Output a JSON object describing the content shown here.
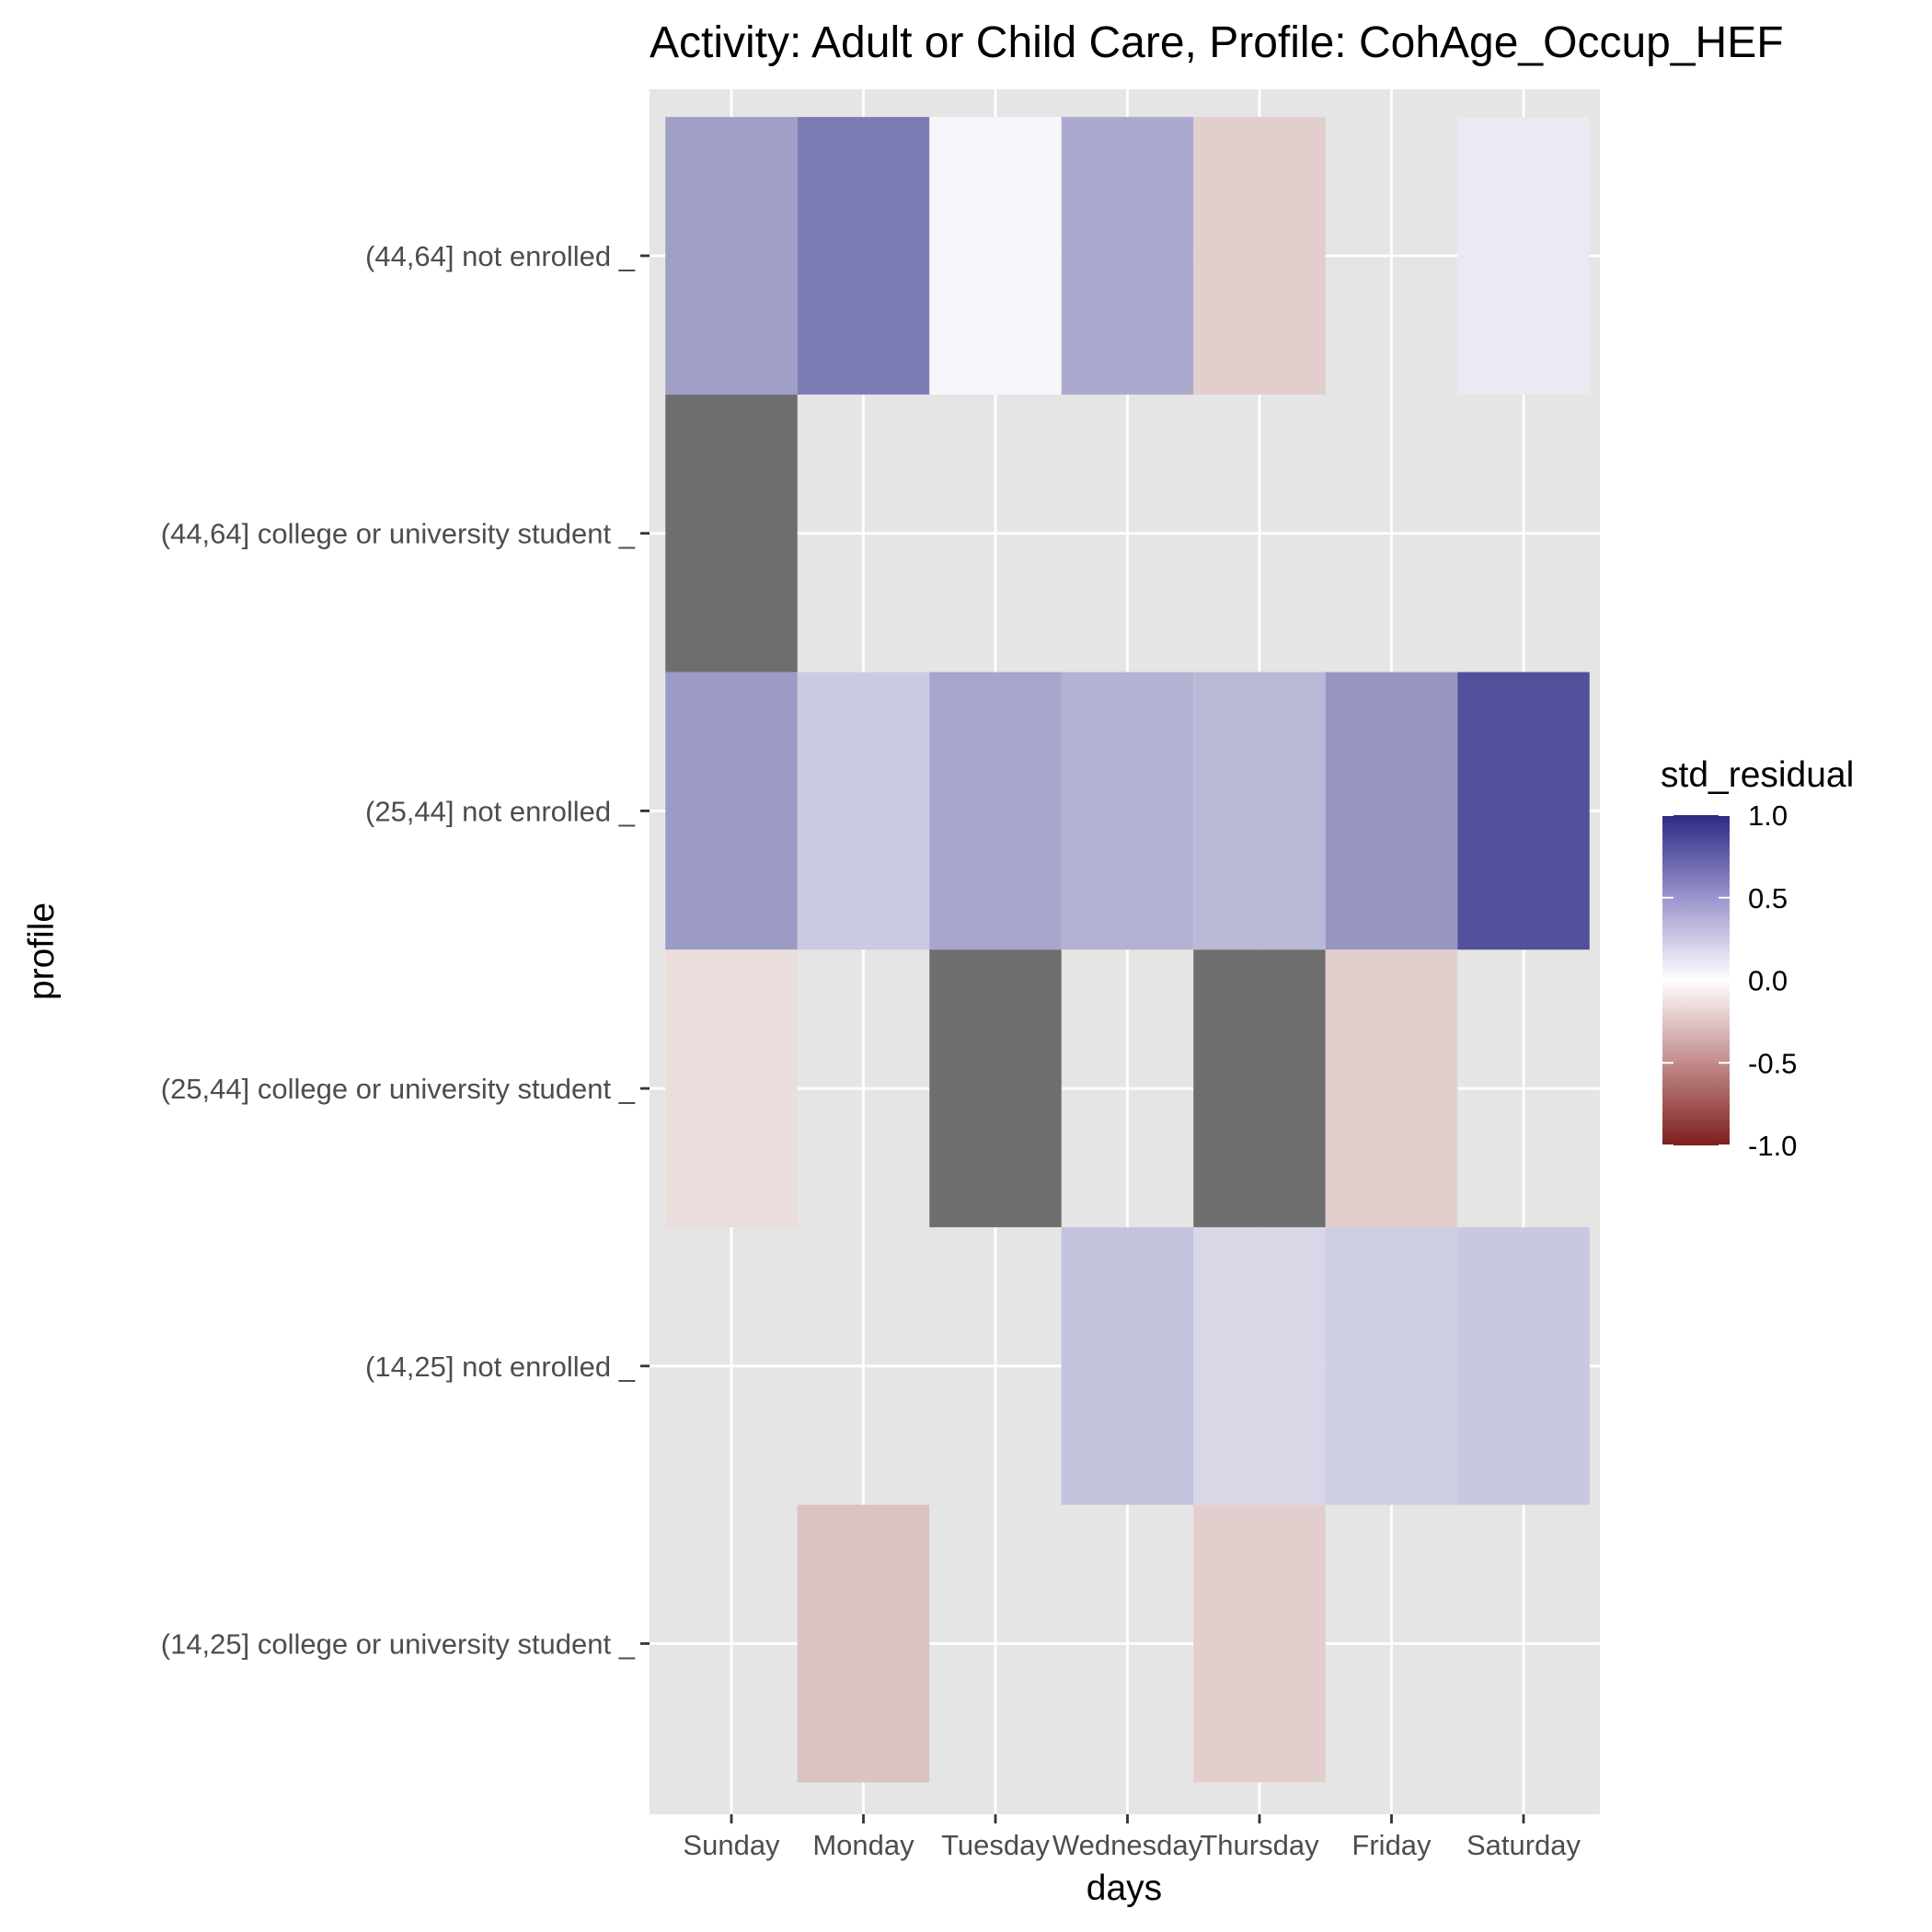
{
  "chart_data": {
    "type": "heatmap",
    "title": "Activity: Adult or Child Care, Profile: CohAge_Occup_HEF",
    "xlabel": "days",
    "ylabel": "profile",
    "x_categories": [
      "Sunday",
      "Monday",
      "Tuesday",
      "Wednesday",
      "Thursday",
      "Friday",
      "Saturday"
    ],
    "y_categories": [
      "(44,64] not enrolled _",
      "(44,64] college or university student _",
      "(25,44] not enrolled _",
      "(25,44] college or university student _",
      "(14,25] not enrolled _",
      "(14,25] college or university student _"
    ],
    "values": [
      [
        0.45,
        0.62,
        0.04,
        0.4,
        -0.22,
        null,
        0.1
      ],
      [
        "NA",
        null,
        null,
        null,
        null,
        null,
        null
      ],
      [
        0.47,
        0.25,
        0.42,
        0.36,
        0.33,
        0.5,
        0.82
      ],
      [
        -0.15,
        null,
        "NA",
        null,
        "NA",
        -0.22,
        null
      ],
      [
        null,
        null,
        null,
        0.28,
        0.19,
        0.23,
        0.26
      ],
      [
        null,
        -0.27,
        null,
        null,
        -0.22,
        null,
        null
      ]
    ],
    "fill_scale": {
      "name": "std_residual",
      "limits": [
        -1.0,
        1.0
      ],
      "breaks": [
        "1.0",
        "0.5",
        "0.0",
        "-0.5",
        "-1.0"
      ],
      "low_color": "#7f1e1e",
      "mid_color": "#ffffff",
      "high_color": "#2c2a85",
      "na_color": "#6e6e6e"
    },
    "panel_background": "#e5e5e5",
    "grid": true,
    "legend_position": "right"
  }
}
